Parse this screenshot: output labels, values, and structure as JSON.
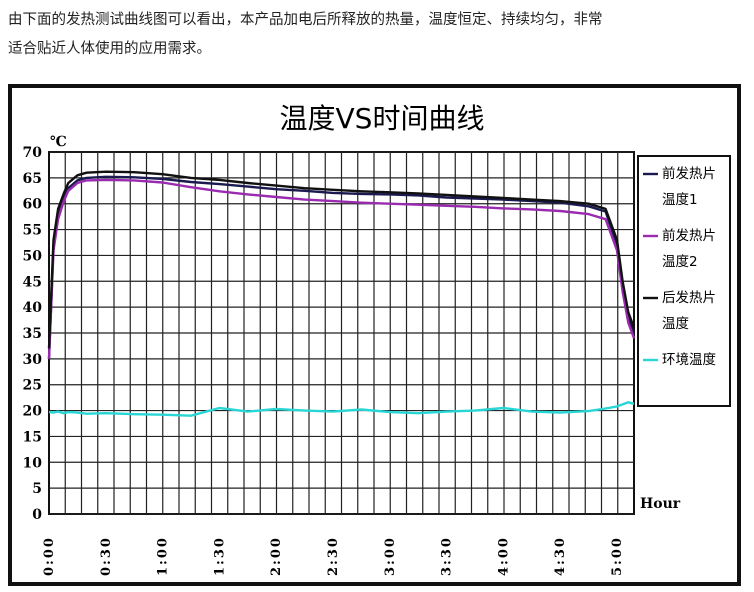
{
  "intro": {
    "line1": "由下面的发热测试曲线图可以看出，本产品加电后所释放的热量，温度恒定、持续均匀，非常",
    "line2": "适合贴近人体使用的应用需求。"
  },
  "chart_data": {
    "type": "line",
    "title": "温度VS时间曲线",
    "ylabel": "℃",
    "xlabel": "Hour",
    "ylim": [
      0,
      70
    ],
    "yticks": [
      0,
      5,
      10,
      15,
      20,
      25,
      30,
      35,
      40,
      45,
      50,
      55,
      60,
      65,
      70
    ],
    "xticks": [
      "0:00",
      "0:30",
      "1:00",
      "1:30",
      "2:00",
      "2:30",
      "3:00",
      "3:30",
      "4:00",
      "4:30",
      "5:00"
    ],
    "x_hours": [
      0.0,
      0.04,
      0.08,
      0.13,
      0.17,
      0.25,
      0.33,
      0.5,
      0.75,
      1.0,
      1.25,
      1.5,
      1.75,
      2.0,
      2.25,
      2.5,
      2.75,
      3.0,
      3.25,
      3.5,
      3.75,
      4.0,
      4.25,
      4.5,
      4.75,
      4.9,
      5.0,
      5.05,
      5.1,
      5.15
    ],
    "series": [
      {
        "name": "前发热片温度1",
        "color": "#1a1a50",
        "values": [
          30,
          52,
          58,
          61,
          63,
          64.5,
          65,
          65.2,
          65.1,
          64.8,
          64.2,
          63.8,
          63.3,
          62.8,
          62.5,
          62.1,
          61.9,
          61.8,
          61.6,
          61.2,
          61.0,
          60.8,
          60.5,
          60.2,
          59.5,
          58.5,
          52,
          44,
          38,
          35
        ]
      },
      {
        "name": "前发热片温度2",
        "color": "#9a2bb0",
        "values": [
          30,
          51,
          57,
          60.5,
          62.5,
          64,
          64.5,
          64.6,
          64.5,
          64.1,
          63.2,
          62.4,
          61.8,
          61.3,
          60.8,
          60.5,
          60.2,
          60.0,
          59.8,
          59.6,
          59.4,
          59.1,
          58.9,
          58.6,
          58.0,
          57.0,
          51,
          43,
          37,
          34
        ]
      },
      {
        "name": "后发热片温度",
        "color": "#111111",
        "values": [
          32,
          53,
          59,
          62,
          64,
          65.5,
          66,
          66.2,
          66.1,
          65.7,
          65.0,
          64.6,
          64.0,
          63.5,
          63.0,
          62.7,
          62.4,
          62.2,
          62.0,
          61.7,
          61.4,
          61.1,
          60.8,
          60.5,
          60.0,
          59.0,
          53,
          45,
          39,
          36
        ]
      },
      {
        "name": "环境温度",
        "color": "#29d6d6",
        "values": [
          19.7,
          19.6,
          19.8,
          19.5,
          19.7,
          19.6,
          19.4,
          19.5,
          19.3,
          19.2,
          19.0,
          20.5,
          19.8,
          20.3,
          20.0,
          19.8,
          20.2,
          19.7,
          19.5,
          19.8,
          20.0,
          20.5,
          19.8,
          19.6,
          19.9,
          20.4,
          20.8,
          21.2,
          21.6,
          21.3
        ]
      }
    ],
    "legend": [
      {
        "line1": "前发热片",
        "line2": "温度1"
      },
      {
        "line1": "前发热片",
        "line2": "温度2"
      },
      {
        "line1": "后发热片",
        "line2": "温度"
      },
      {
        "line1": "环境温度",
        "line2": ""
      }
    ],
    "legend_position": "right",
    "grid": true
  }
}
